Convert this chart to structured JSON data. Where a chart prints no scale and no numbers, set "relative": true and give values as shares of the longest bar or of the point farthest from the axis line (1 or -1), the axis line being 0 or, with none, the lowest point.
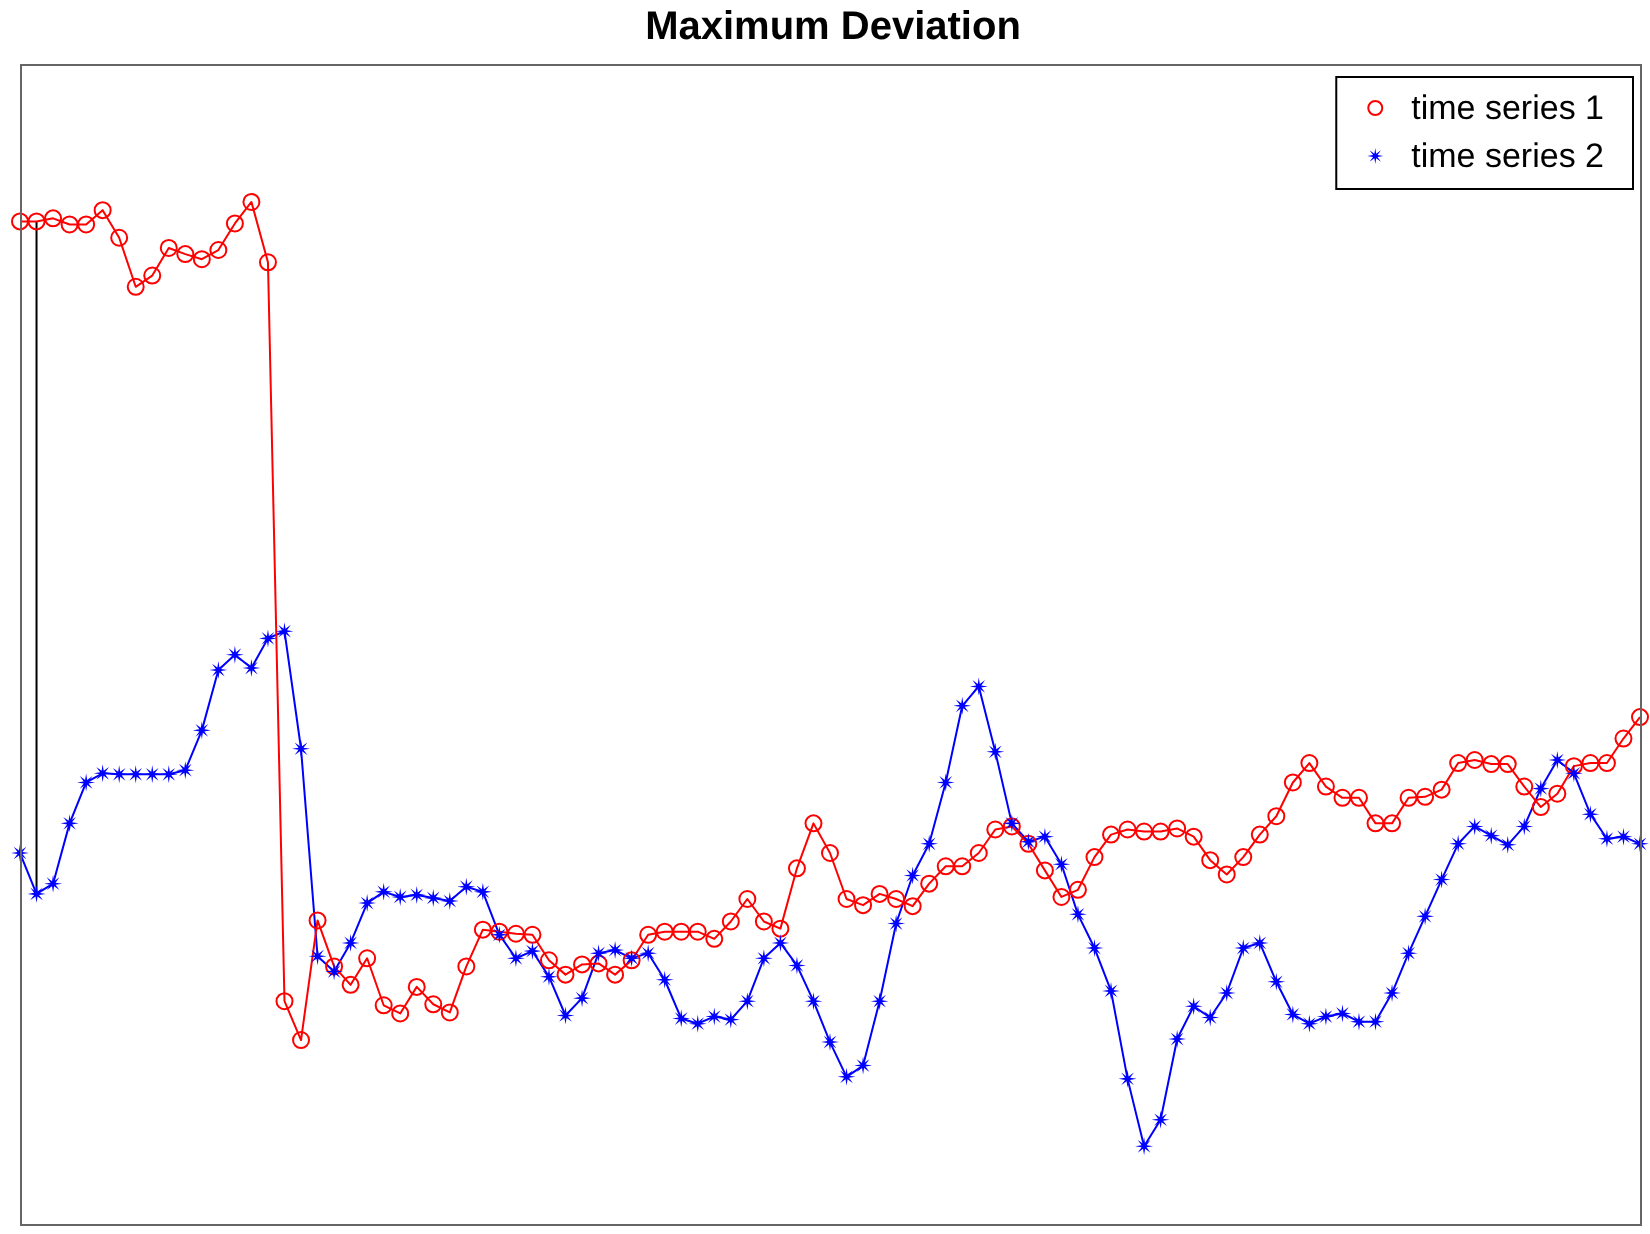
{
  "chart_data": {
    "type": "line",
    "title": "Maximum Deviation",
    "relative": true,
    "grid": false,
    "legend": "top right",
    "categories": [
      null,
      null,
      null,
      null,
      null,
      null,
      null,
      null,
      null,
      null,
      null,
      null,
      null,
      null,
      null,
      null,
      null,
      null,
      null,
      null,
      null,
      null,
      null,
      null,
      null,
      null,
      null,
      null,
      null,
      null,
      null,
      null,
      null,
      null,
      null,
      null,
      null,
      null,
      null,
      null,
      null,
      null,
      null,
      null,
      null,
      null,
      null,
      null,
      null,
      null,
      null,
      null,
      null,
      null,
      null,
      null,
      null,
      null,
      null,
      null,
      null,
      null,
      null,
      null,
      null,
      null,
      null,
      null,
      null,
      null,
      null,
      null,
      null,
      null,
      null,
      null,
      null,
      null,
      null,
      null,
      null,
      null,
      null,
      null,
      null,
      null,
      null,
      null,
      null,
      null,
      null,
      null,
      null,
      null,
      null,
      null,
      null,
      null,
      null
    ],
    "series": [
      {
        "name": "time series 1",
        "color": "#ff0000",
        "marker": "circle",
        "values": [
          0.981,
          0.981,
          0.984,
          0.978,
          0.978,
          0.992,
          0.965,
          0.917,
          0.928,
          0.955,
          0.949,
          0.944,
          0.953,
          0.979,
          1.0,
          0.941,
          0.218,
          0.18,
          0.297,
          0.252,
          0.234,
          0.26,
          0.214,
          0.206,
          0.232,
          0.215,
          0.207,
          0.252,
          0.288,
          0.286,
          0.284,
          0.283,
          0.258,
          0.244,
          0.254,
          0.255,
          0.244,
          0.258,
          0.283,
          0.286,
          0.286,
          0.286,
          0.279,
          0.296,
          0.318,
          0.296,
          0.289,
          0.348,
          0.392,
          0.363,
          0.318,
          0.312,
          0.323,
          0.318,
          0.311,
          0.333,
          0.35,
          0.35,
          0.363,
          0.386,
          0.389,
          0.372,
          0.346,
          0.32,
          0.327,
          0.359,
          0.381,
          0.386,
          0.384,
          0.384,
          0.387,
          0.379,
          0.356,
          0.342,
          0.359,
          0.381,
          0.399,
          0.432,
          0.451,
          0.428,
          0.417,
          0.417,
          0.392,
          0.392,
          0.417,
          0.418,
          0.425,
          0.451,
          0.454,
          0.45,
          0.45,
          0.428,
          0.408,
          0.421,
          0.448,
          0.451,
          0.451,
          0.475,
          0.496
        ]
      },
      {
        "name": "time series 2",
        "color": "#0000ff",
        "marker": "star",
        "values": [
          0.363,
          0.323,
          0.333,
          0.392,
          0.432,
          0.441,
          0.44,
          0.44,
          0.44,
          0.44,
          0.444,
          0.483,
          0.542,
          0.557,
          0.544,
          0.573,
          0.58,
          0.465,
          0.262,
          0.247,
          0.275,
          0.314,
          0.325,
          0.32,
          0.322,
          0.319,
          0.316,
          0.33,
          0.325,
          0.283,
          0.26,
          0.267,
          0.242,
          0.204,
          0.221,
          0.265,
          0.268,
          0.26,
          0.265,
          0.239,
          0.201,
          0.196,
          0.203,
          0.2,
          0.218,
          0.26,
          0.275,
          0.253,
          0.218,
          0.178,
          0.144,
          0.155,
          0.218,
          0.294,
          0.341,
          0.372,
          0.432,
          0.507,
          0.526,
          0.462,
          0.392,
          0.374,
          0.379,
          0.352,
          0.303,
          0.27,
          0.228,
          0.142,
          0.076,
          0.102,
          0.181,
          0.213,
          0.202,
          0.226,
          0.27,
          0.275,
          0.237,
          0.205,
          0.196,
          0.203,
          0.206,
          0.198,
          0.198,
          0.226,
          0.265,
          0.301,
          0.337,
          0.372,
          0.389,
          0.38,
          0.371,
          0.389,
          0.426,
          0.454,
          0.441,
          0.401,
          0.377,
          0.379,
          0.372
        ]
      }
    ]
  }
}
